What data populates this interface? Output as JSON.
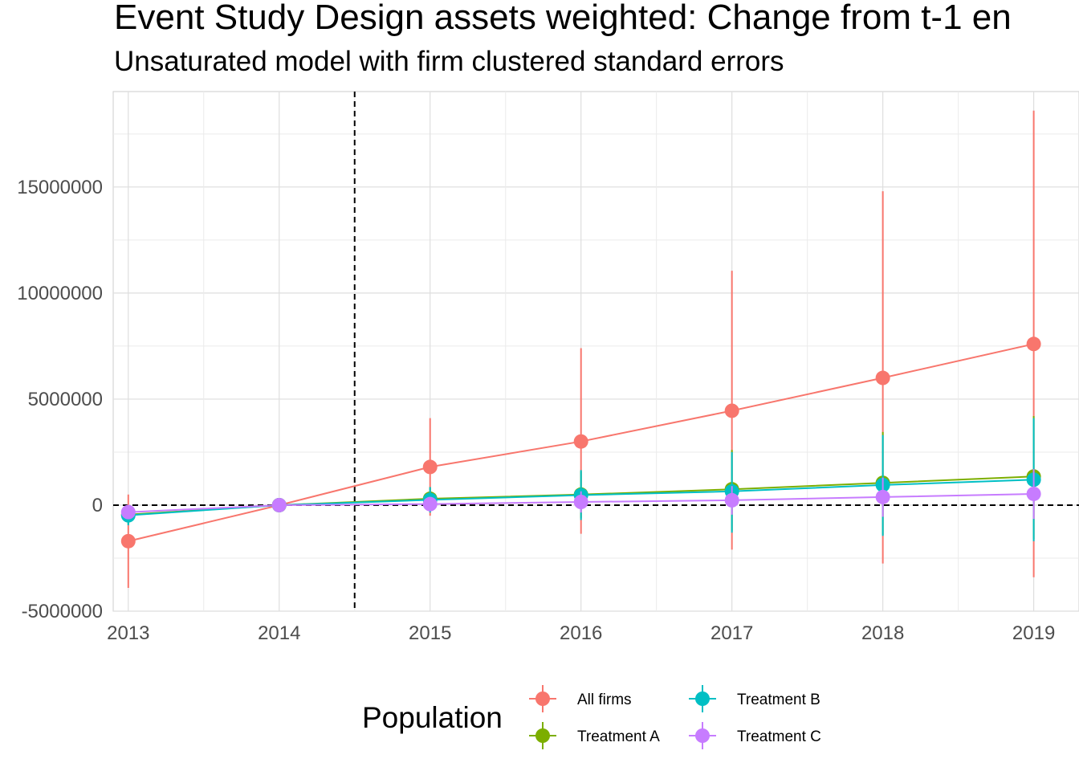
{
  "chart_data": {
    "type": "line",
    "title": "Event Study Design assets weighted: Change from t-1 en",
    "subtitle": "Unsaturated model with firm clustered standard errors",
    "xlabel": "",
    "ylabel": "",
    "x": [
      2013,
      2014,
      2015,
      2016,
      2017,
      2018,
      2019
    ],
    "xlim": [
      2012.9,
      2019.3
    ],
    "ylim": [
      -5000000,
      19500000
    ],
    "x_ticks": [
      "2013",
      "2014",
      "2015",
      "2016",
      "2017",
      "2018",
      "2019"
    ],
    "y_ticks": [
      {
        "value": -5000000,
        "label": "-5000000"
      },
      {
        "value": 0,
        "label": "0"
      },
      {
        "value": 5000000,
        "label": "5000000"
      },
      {
        "value": 10000000,
        "label": "10000000"
      },
      {
        "value": 15000000,
        "label": "15000000"
      }
    ],
    "vertical_reference_line": 2014.5,
    "horizontal_reference_line": 0,
    "grid": true,
    "legend_title": "Population",
    "legend_position": "bottom",
    "series": [
      {
        "name": "All firms",
        "color": "#F8766D",
        "values": [
          -1700000,
          0,
          1800000,
          3000000,
          4450000,
          6000000,
          7600000
        ],
        "lower": [
          -3900000,
          0,
          -500000,
          -1350000,
          -2100000,
          -2750000,
          -3400000
        ],
        "upper": [
          500000,
          0,
          4100000,
          7400000,
          11050000,
          14800000,
          18600000
        ]
      },
      {
        "name": "Treatment A",
        "color": "#7CAE00",
        "values": [
          -450000,
          0,
          300000,
          500000,
          750000,
          1050000,
          1350000
        ],
        "lower": [
          -900000,
          0,
          -250000,
          -600000,
          -1200000,
          -1400000,
          -1600000
        ],
        "upper": [
          0,
          0,
          850000,
          1600000,
          2600000,
          3450000,
          4200000
        ]
      },
      {
        "name": "Treatment B",
        "color": "#00BFC4",
        "values": [
          -480000,
          0,
          250000,
          470000,
          650000,
          950000,
          1200000
        ],
        "lower": [
          -950000,
          0,
          -350000,
          -700000,
          -1300000,
          -1450000,
          -1700000
        ],
        "upper": [
          0,
          0,
          850000,
          1650000,
          2500000,
          3300000,
          4100000
        ]
      },
      {
        "name": "Treatment C",
        "color": "#C77CFF",
        "values": [
          -330000,
          0,
          50000,
          150000,
          230000,
          380000,
          530000
        ],
        "lower": [
          -650000,
          0,
          -200000,
          -350000,
          -450000,
          -550000,
          -650000
        ],
        "upper": [
          0,
          0,
          300000,
          650000,
          900000,
          1300000,
          1700000
        ]
      }
    ]
  }
}
